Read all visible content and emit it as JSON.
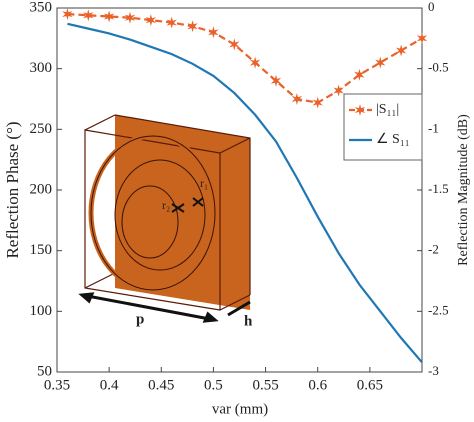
{
  "chart_data": {
    "type": "line",
    "x": [
      0.36,
      0.38,
      0.4,
      0.42,
      0.44,
      0.46,
      0.48,
      0.5,
      0.52,
      0.54,
      0.56,
      0.58,
      0.6,
      0.62,
      0.64,
      0.66,
      0.68,
      0.7
    ],
    "series": [
      {
        "name": "|S₁₁|",
        "color": "#e8622a",
        "axis": "y2",
        "values": [
          -0.05,
          -0.06,
          -0.07,
          -0.08,
          -0.1,
          -0.12,
          -0.15,
          -0.2,
          -0.3,
          -0.45,
          -0.6,
          -0.75,
          -0.78,
          -0.68,
          -0.55,
          -0.45,
          -0.35,
          -0.25
        ]
      },
      {
        "name": "∠ S₁₁",
        "color": "#1f77b4",
        "values": [
          337,
          333,
          329,
          324,
          318,
          312,
          304,
          294,
          280,
          262,
          240,
          210,
          178,
          148,
          122,
          100,
          78,
          58
        ]
      }
    ],
    "x_label": "var (mm)",
    "y_label": "Reflection Phase (°)",
    "y2_label": "Reflection Magnitude (dB)",
    "xlim": [
      0.35,
      0.7
    ],
    "xticks": [
      0.35,
      0.4,
      0.45,
      0.5,
      0.55,
      0.6,
      0.65
    ],
    "ylim": [
      50,
      350
    ],
    "yticks": [
      50,
      100,
      150,
      200,
      250,
      300,
      350
    ],
    "y2lim": [
      -3,
      0
    ],
    "y2ticks": [
      -3,
      -2.5,
      -2,
      -1.5,
      -1,
      -0.5,
      0
    ],
    "annotations": [
      "r₁",
      "r₂",
      "p",
      "h"
    ]
  }
}
